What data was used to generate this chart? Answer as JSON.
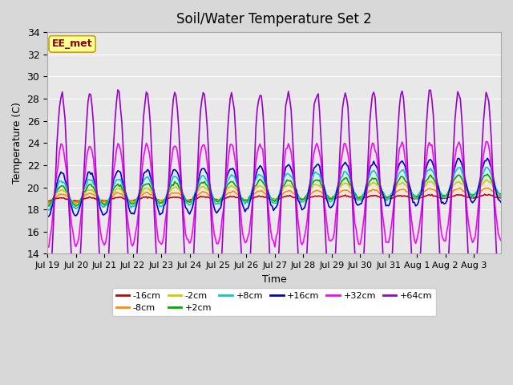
{
  "title": "Soil/Water Temperature Set 2",
  "xlabel": "Time",
  "ylabel": "Temperature (C)",
  "ylim": [
    14,
    34
  ],
  "yticks": [
    14,
    16,
    18,
    20,
    22,
    24,
    26,
    28,
    30,
    32,
    34
  ],
  "fig_bg_color": "#d8d8d8",
  "plot_bg_color": "#e8e8e8",
  "annotation_text": "EE_met",
  "annotation_bg": "#ffff99",
  "annotation_border": "#c8a000",
  "annotation_text_color": "#8b0000",
  "series_order": [
    "-16cm",
    "-8cm",
    "-2cm",
    "+2cm",
    "+8cm",
    "+16cm",
    "+32cm",
    "+64cm"
  ],
  "series_colors": {
    "-16cm": "#cc0000",
    "-8cm": "#ff8c00",
    "-2cm": "#cccc00",
    "+2cm": "#00aa00",
    "+8cm": "#00cccc",
    "+16cm": "#0000cc",
    "+32cm": "#ff00ff",
    "+64cm": "#9900cc"
  },
  "n_points": 336,
  "days": 16,
  "xtick_labels": [
    "Jul 19",
    "Jul 20",
    "Jul 21",
    "Jul 22",
    "Jul 23",
    "Jul 24",
    "Jul 25",
    "Jul 26",
    "Jul 27",
    "Jul 28",
    "Jul 29",
    "Jul 30",
    "Jul 31",
    "Aug 1",
    "Aug 2",
    "Aug 3"
  ],
  "legend_entries": [
    "-16cm",
    "-8cm",
    "-2cm",
    "+2cm",
    "+8cm",
    "+16cm",
    "+32cm",
    "+64cm"
  ],
  "legend_colors": [
    "#cc0000",
    "#ff8c00",
    "#cccc00",
    "#00aa00",
    "#00cccc",
    "#0000cc",
    "#ff00ff",
    "#9900cc"
  ]
}
